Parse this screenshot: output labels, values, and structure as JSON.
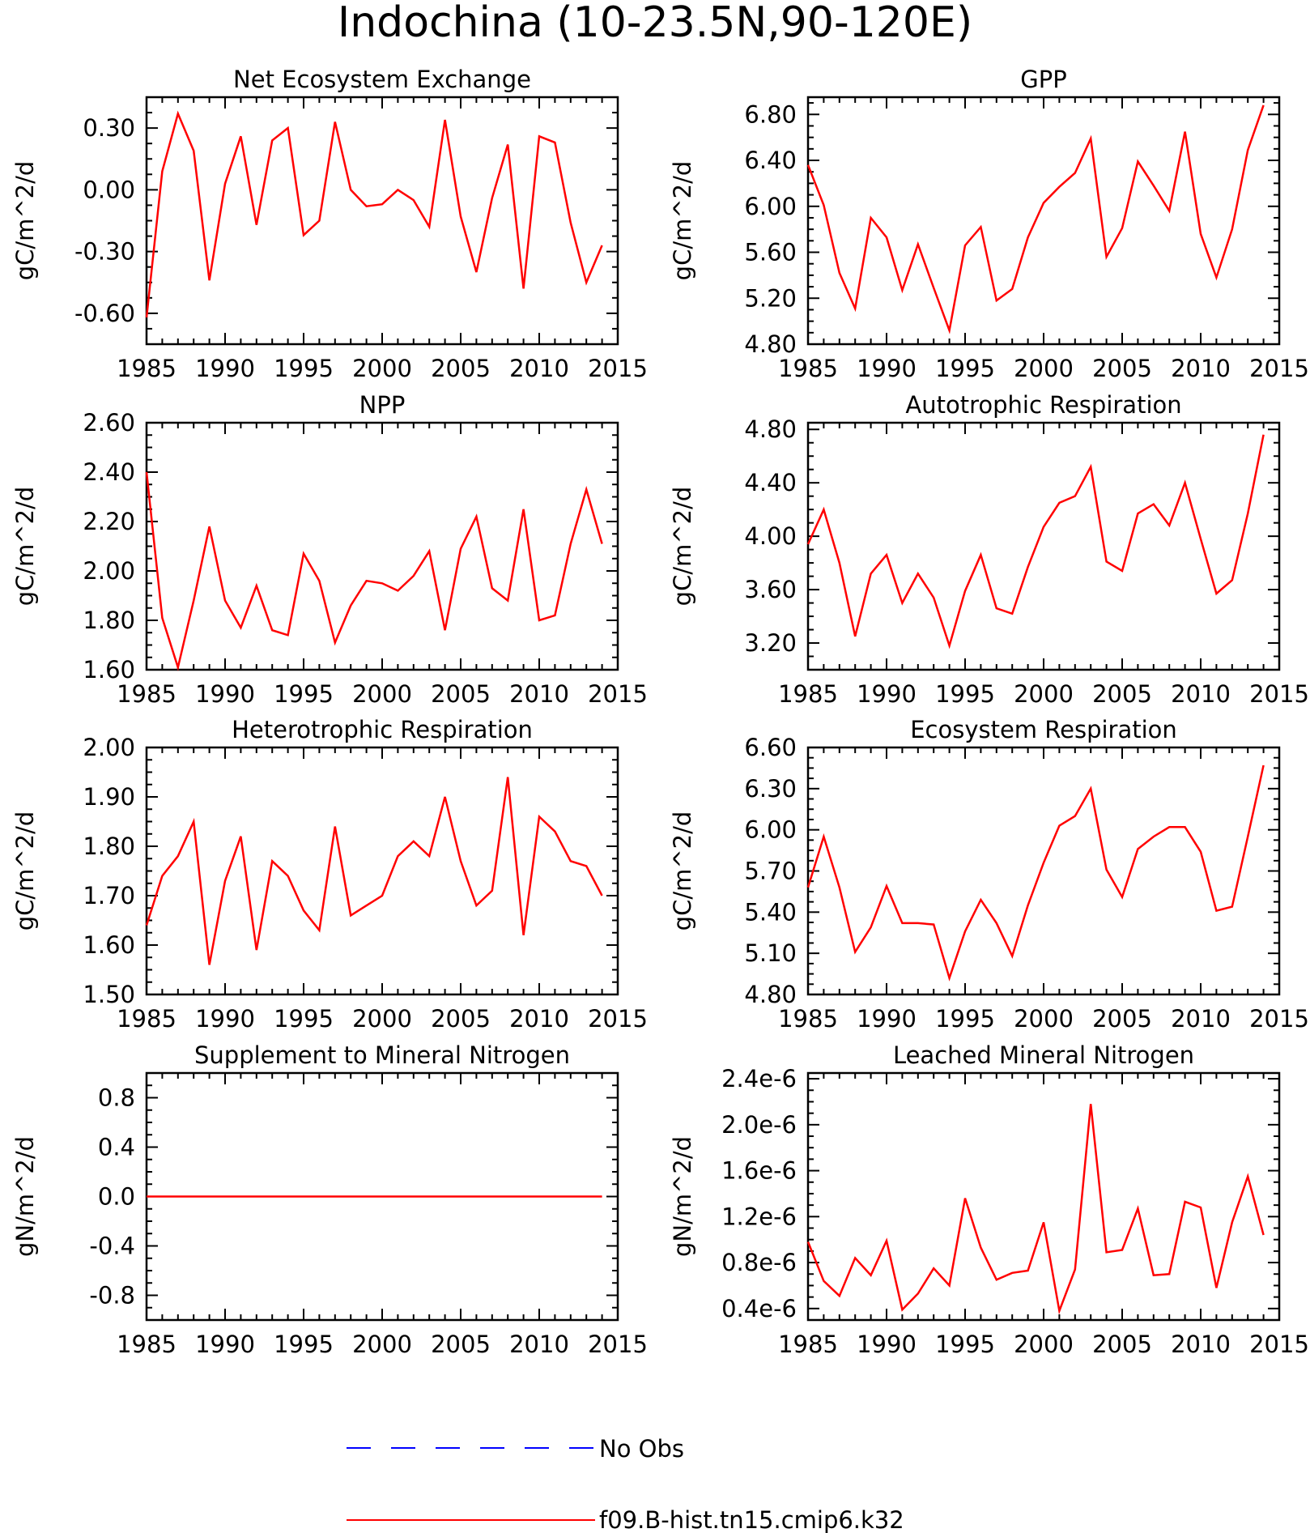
{
  "figure": {
    "title": "Indochina (10-23.5N,90-120E)"
  },
  "legend": {
    "items": [
      {
        "label": "No Obs",
        "color": "#0000ff",
        "dash": true
      },
      {
        "label": "f09.B-hist.tn15.cmip6.k32",
        "color": "#ff0000",
        "dash": false
      }
    ]
  },
  "chart_data": [
    {
      "type": "line",
      "title": "Net Ecosystem Exchange",
      "ylabel": "gC/m^2/d",
      "xlim": [
        1985,
        2015
      ],
      "ylim": [
        -0.75,
        0.45
      ],
      "xticks": [
        "1985",
        "1990",
        "1995",
        "2000",
        "2005",
        "2010",
        "2015"
      ],
      "yticks": [
        -0.6,
        -0.3,
        0.0,
        0.3
      ],
      "yticklabels": [
        "-0.60",
        "-0.30",
        "0.00",
        "0.30"
      ],
      "series": [
        {
          "color": "#ff0000",
          "x": [
            1985,
            1986,
            1987,
            1988,
            1989,
            1990,
            1991,
            1992,
            1993,
            1994,
            1995,
            1996,
            1997,
            1998,
            1999,
            2000,
            2001,
            2002,
            2003,
            2004,
            2005,
            2006,
            2007,
            2008,
            2009,
            2010,
            2011,
            2012,
            2013,
            2014
          ],
          "values": [
            -0.62,
            0.09,
            0.37,
            0.19,
            -0.44,
            0.03,
            0.26,
            -0.17,
            0.24,
            0.3,
            -0.22,
            -0.15,
            0.33,
            0.0,
            -0.08,
            -0.07,
            0.0,
            -0.05,
            -0.18,
            0.34,
            -0.13,
            -0.4,
            -0.04,
            0.22,
            -0.48,
            0.26,
            0.23,
            -0.16,
            -0.45,
            -0.27
          ]
        }
      ]
    },
    {
      "type": "line",
      "title": "GPP",
      "ylabel": "gC/m^2/d",
      "xlim": [
        1985,
        2015
      ],
      "ylim": [
        4.8,
        6.95
      ],
      "xticks": [
        "1985",
        "1990",
        "1995",
        "2000",
        "2005",
        "2010",
        "2015"
      ],
      "yticks": [
        4.8,
        5.2,
        5.6,
        6.0,
        6.4,
        6.8
      ],
      "yticklabels": [
        "4.80",
        "5.20",
        "5.60",
        "6.00",
        "6.40",
        "6.80"
      ],
      "series": [
        {
          "color": "#ff0000",
          "x": [
            1985,
            1986,
            1987,
            1988,
            1989,
            1990,
            1991,
            1992,
            1993,
            1994,
            1995,
            1996,
            1997,
            1998,
            1999,
            2000,
            2001,
            2002,
            2003,
            2004,
            2005,
            2006,
            2007,
            2008,
            2009,
            2010,
            2011,
            2012,
            2013,
            2014
          ],
          "values": [
            6.36,
            6.01,
            5.42,
            5.11,
            5.9,
            5.73,
            5.27,
            5.67,
            5.29,
            4.92,
            5.66,
            5.82,
            5.18,
            5.28,
            5.73,
            6.03,
            6.17,
            6.29,
            6.59,
            5.56,
            5.81,
            6.39,
            6.18,
            5.96,
            6.65,
            5.76,
            5.38,
            5.8,
            6.49,
            6.88
          ]
        }
      ]
    },
    {
      "type": "line",
      "title": "NPP",
      "ylabel": "gC/m^2/d",
      "xlim": [
        1985,
        2015
      ],
      "ylim": [
        1.6,
        2.6
      ],
      "xticks": [
        "1985",
        "1990",
        "1995",
        "2000",
        "2005",
        "2010",
        "2015"
      ],
      "yticks": [
        1.6,
        1.8,
        2.0,
        2.2,
        2.4,
        2.6
      ],
      "yticklabels": [
        "1.60",
        "1.80",
        "2.00",
        "2.20",
        "2.40",
        "2.60"
      ],
      "series": [
        {
          "color": "#ff0000",
          "x": [
            1985,
            1986,
            1987,
            1988,
            1989,
            1990,
            1991,
            1992,
            1993,
            1994,
            1995,
            1996,
            1997,
            1998,
            1999,
            2000,
            2001,
            2002,
            2003,
            2004,
            2005,
            2006,
            2007,
            2008,
            2009,
            2010,
            2011,
            2012,
            2013,
            2014
          ],
          "values": [
            2.4,
            1.81,
            1.61,
            1.88,
            2.18,
            1.88,
            1.77,
            1.94,
            1.76,
            1.74,
            2.07,
            1.96,
            1.71,
            1.86,
            1.96,
            1.95,
            1.92,
            1.98,
            2.08,
            1.76,
            2.09,
            2.22,
            1.93,
            1.88,
            2.25,
            1.8,
            1.82,
            2.11,
            2.33,
            2.11
          ]
        }
      ]
    },
    {
      "type": "line",
      "title": "Autotrophic Respiration",
      "ylabel": "gC/m^2/d",
      "xlim": [
        1985,
        2015
      ],
      "ylim": [
        3.0,
        4.85
      ],
      "xticks": [
        "1985",
        "1990",
        "1995",
        "2000",
        "2005",
        "2010",
        "2015"
      ],
      "yticks": [
        3.2,
        3.6,
        4.0,
        4.4,
        4.8
      ],
      "yticklabels": [
        "3.20",
        "3.60",
        "4.00",
        "4.40",
        "4.80"
      ],
      "series": [
        {
          "color": "#ff0000",
          "x": [
            1985,
            1986,
            1987,
            1988,
            1989,
            1990,
            1991,
            1992,
            1993,
            1994,
            1995,
            1996,
            1997,
            1998,
            1999,
            2000,
            2001,
            2002,
            2003,
            2004,
            2005,
            2006,
            2007,
            2008,
            2009,
            2010,
            2011,
            2012,
            2013,
            2014
          ],
          "values": [
            3.94,
            4.2,
            3.8,
            3.25,
            3.72,
            3.86,
            3.5,
            3.72,
            3.54,
            3.18,
            3.59,
            3.86,
            3.46,
            3.42,
            3.77,
            4.07,
            4.25,
            4.3,
            4.52,
            3.81,
            3.74,
            4.17,
            4.24,
            4.08,
            4.4,
            3.98,
            3.57,
            3.67,
            4.17,
            4.76
          ]
        }
      ]
    },
    {
      "type": "line",
      "title": "Heterotrophic Respiration",
      "ylabel": "gC/m^2/d",
      "xlim": [
        1985,
        2015
      ],
      "ylim": [
        1.5,
        2.0
      ],
      "xticks": [
        "1985",
        "1990",
        "1995",
        "2000",
        "2005",
        "2010",
        "2015"
      ],
      "yticks": [
        1.5,
        1.6,
        1.7,
        1.8,
        1.9,
        2.0
      ],
      "yticklabels": [
        "1.50",
        "1.60",
        "1.70",
        "1.80",
        "1.90",
        "2.00"
      ],
      "series": [
        {
          "color": "#ff0000",
          "x": [
            1985,
            1986,
            1987,
            1988,
            1989,
            1990,
            1991,
            1992,
            1993,
            1994,
            1995,
            1996,
            1997,
            1998,
            1999,
            2000,
            2001,
            2002,
            2003,
            2004,
            2005,
            2006,
            2007,
            2008,
            2009,
            2010,
            2011,
            2012,
            2013,
            2014
          ],
          "values": [
            1.64,
            1.74,
            1.78,
            1.85,
            1.56,
            1.73,
            1.82,
            1.59,
            1.77,
            1.74,
            1.67,
            1.63,
            1.84,
            1.66,
            1.68,
            1.7,
            1.78,
            1.81,
            1.78,
            1.9,
            1.77,
            1.68,
            1.71,
            1.94,
            1.62,
            1.86,
            1.83,
            1.77,
            1.76,
            1.7
          ]
        }
      ]
    },
    {
      "type": "line",
      "title": "Ecosystem Respiration",
      "ylabel": "gC/m^2/d",
      "xlim": [
        1985,
        2015
      ],
      "ylim": [
        4.8,
        6.6
      ],
      "xticks": [
        "1985",
        "1990",
        "1995",
        "2000",
        "2005",
        "2010",
        "2015"
      ],
      "yticks": [
        4.8,
        5.1,
        5.4,
        5.7,
        6.0,
        6.3,
        6.6
      ],
      "yticklabels": [
        "4.80",
        "5.10",
        "5.40",
        "5.70",
        "6.00",
        "6.30",
        "6.60"
      ],
      "series": [
        {
          "color": "#ff0000",
          "x": [
            1985,
            1986,
            1987,
            1988,
            1989,
            1990,
            1991,
            1992,
            1993,
            1994,
            1995,
            1996,
            1997,
            1998,
            1999,
            2000,
            2001,
            2002,
            2003,
            2004,
            2005,
            2006,
            2007,
            2008,
            2009,
            2010,
            2011,
            2012,
            2013,
            2014
          ],
          "values": [
            5.58,
            5.95,
            5.58,
            5.11,
            5.29,
            5.59,
            5.32,
            5.32,
            5.31,
            4.92,
            5.26,
            5.49,
            5.32,
            5.08,
            5.45,
            5.76,
            6.03,
            6.1,
            6.3,
            5.71,
            5.51,
            5.86,
            5.95,
            6.02,
            6.02,
            5.84,
            5.41,
            5.44,
            5.95,
            6.47
          ]
        }
      ]
    },
    {
      "type": "line",
      "title": "Supplement to Mineral Nitrogen",
      "ylabel": "gN/m^2/d",
      "xlim": [
        1985,
        2015
      ],
      "ylim": [
        -1.0,
        1.0
      ],
      "xticks": [
        "1985",
        "1990",
        "1995",
        "2000",
        "2005",
        "2010",
        "2015"
      ],
      "yticks": [
        -0.8,
        -0.4,
        0.0,
        0.4,
        0.8
      ],
      "yticklabels": [
        "-0.8",
        "-0.4",
        "0.0",
        "0.4",
        "0.8"
      ],
      "series": [
        {
          "color": "#ff0000",
          "x": [
            1985,
            1986,
            1987,
            1988,
            1989,
            1990,
            1991,
            1992,
            1993,
            1994,
            1995,
            1996,
            1997,
            1998,
            1999,
            2000,
            2001,
            2002,
            2003,
            2004,
            2005,
            2006,
            2007,
            2008,
            2009,
            2010,
            2011,
            2012,
            2013,
            2014
          ],
          "values": [
            0,
            0,
            0,
            0,
            0,
            0,
            0,
            0,
            0,
            0,
            0,
            0,
            0,
            0,
            0,
            0,
            0,
            0,
            0,
            0,
            0,
            0,
            0,
            0,
            0,
            0,
            0,
            0,
            0,
            0
          ]
        }
      ]
    },
    {
      "type": "line",
      "title": "Leached Mineral Nitrogen",
      "ylabel": "gN/m^2/d",
      "xlim": [
        1985,
        2015
      ],
      "ylim": [
        3e-07,
        2.45e-06
      ],
      "xticks": [
        "1985",
        "1990",
        "1995",
        "2000",
        "2005",
        "2010",
        "2015"
      ],
      "yticks": [
        4e-07,
        8e-07,
        1.2e-06,
        1.6e-06,
        2e-06,
        2.4e-06
      ],
      "yticklabels": [
        "0.4e-6",
        "0.8e-6",
        "1.2e-6",
        "1.6e-6",
        "2.0e-6",
        "2.4e-6"
      ],
      "series": [
        {
          "color": "#ff0000",
          "x": [
            1985,
            1986,
            1987,
            1988,
            1989,
            1990,
            1991,
            1992,
            1993,
            1994,
            1995,
            1996,
            1997,
            1998,
            1999,
            2000,
            2001,
            2002,
            2003,
            2004,
            2005,
            2006,
            2007,
            2008,
            2009,
            2010,
            2011,
            2012,
            2013,
            2014
          ],
          "values": [
            9.8e-07,
            6.4e-07,
            5.1e-07,
            8.4e-07,
            6.9e-07,
            9.9e-07,
            3.9e-07,
            5.3e-07,
            7.5e-07,
            6e-07,
            1.36e-06,
            9.3e-07,
            6.5e-07,
            7.1e-07,
            7.3e-07,
            1.15e-06,
            3.8e-07,
            7.4e-07,
            2.18e-06,
            8.9e-07,
            9.1e-07,
            1.27e-06,
            6.9e-07,
            7e-07,
            1.33e-06,
            1.28e-06,
            5.8e-07,
            1.15e-06,
            1.55e-06,
            1.04e-06
          ]
        }
      ]
    }
  ]
}
